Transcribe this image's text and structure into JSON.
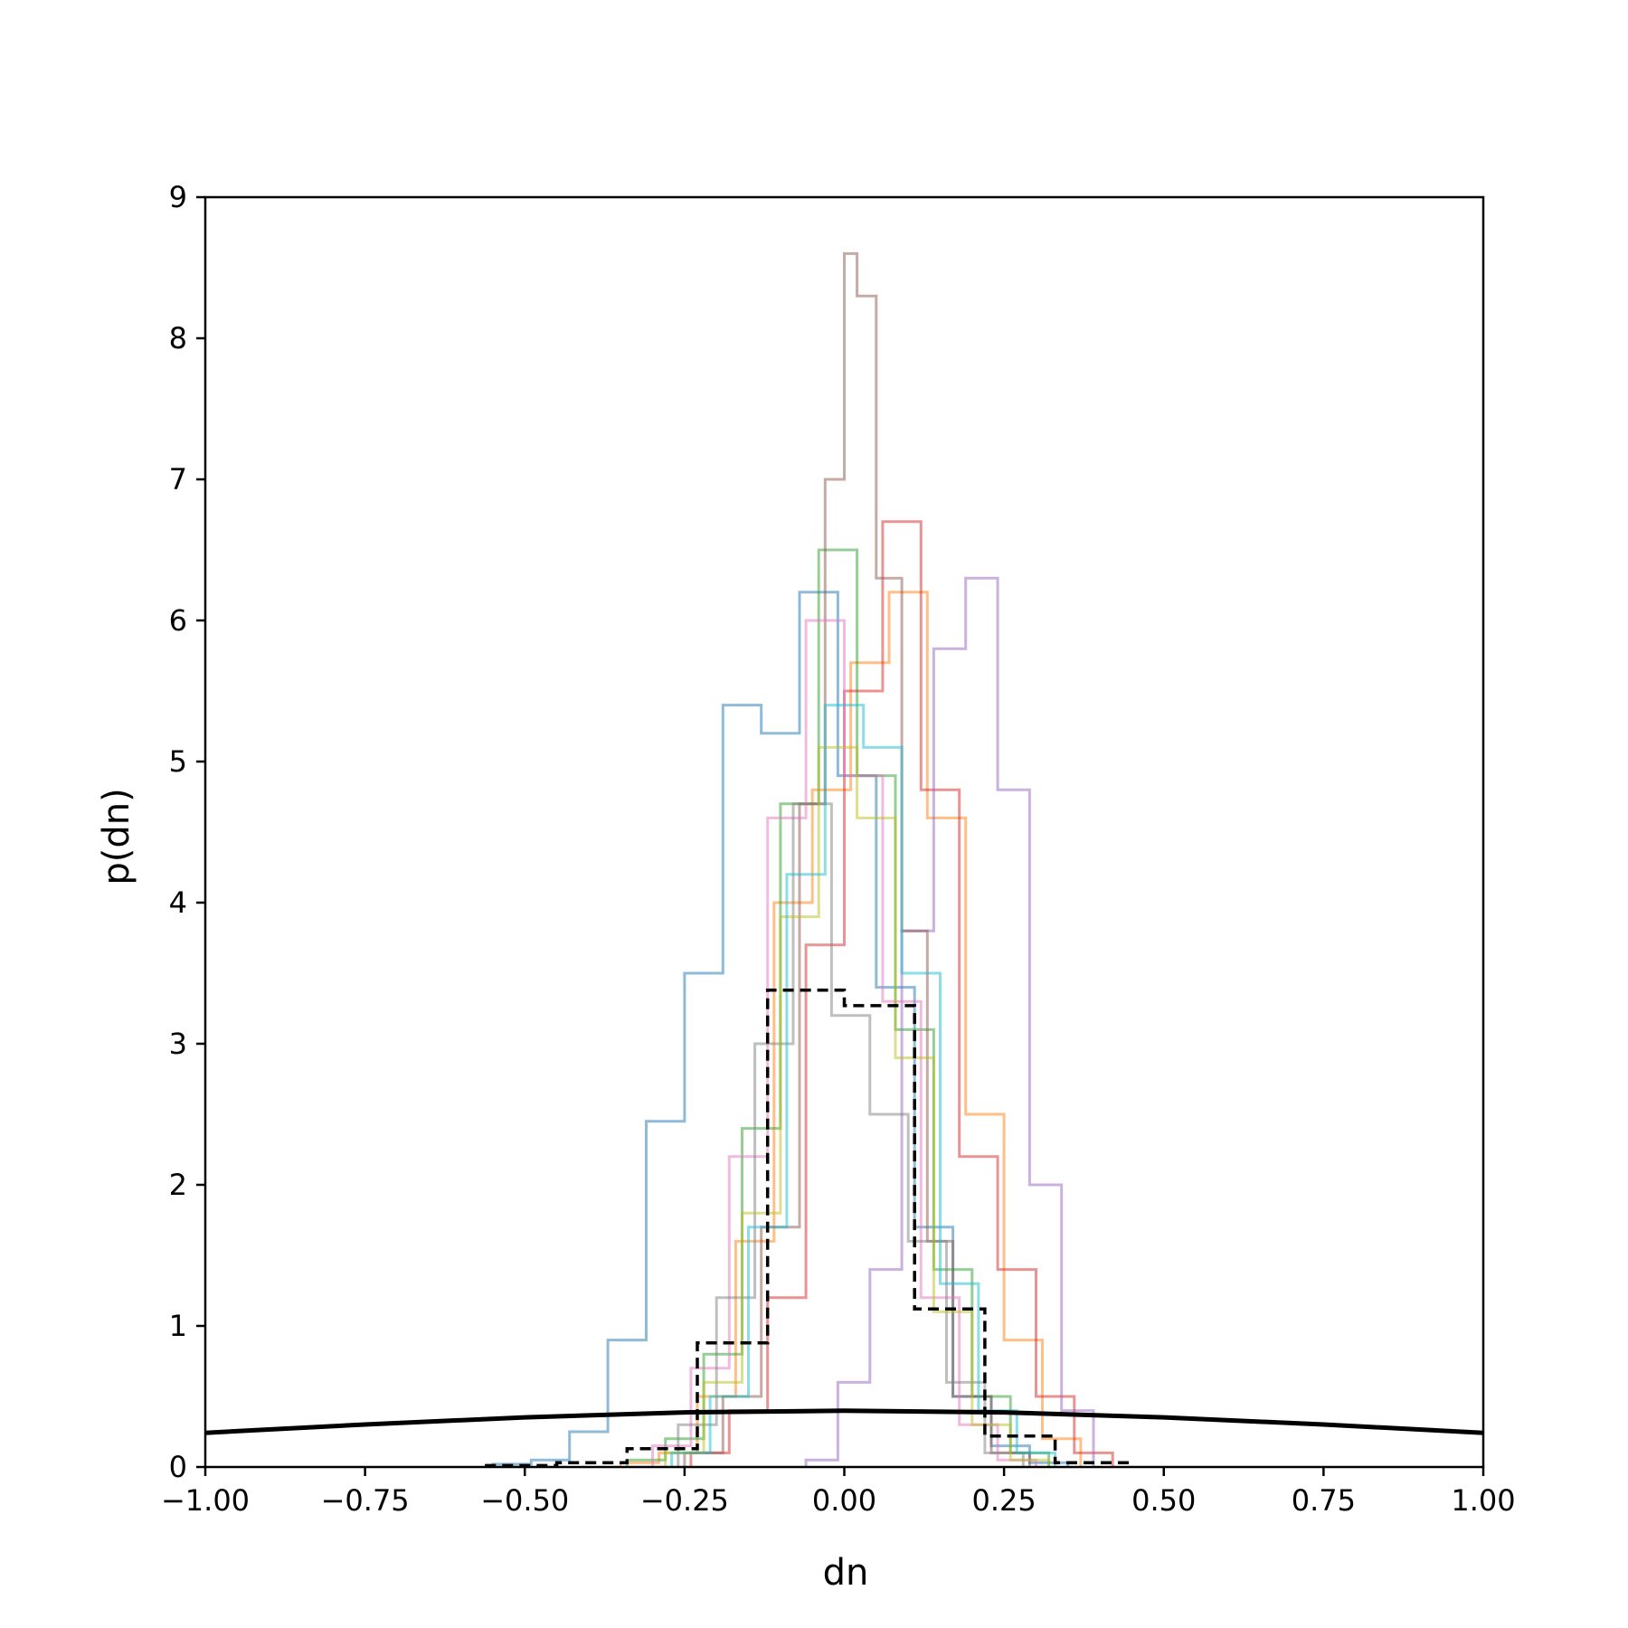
{
  "chart_data": {
    "type": "line",
    "title": "",
    "xlabel": "dn",
    "ylabel": "p(dn)",
    "xlim": [
      -1.0,
      1.0
    ],
    "ylim": [
      0,
      9
    ],
    "grid": false,
    "x_ticks": [
      "−1.00",
      "−0.75",
      "−0.50",
      "−0.25",
      "0.00",
      "0.25",
      "0.50",
      "0.75",
      "1.00"
    ],
    "x_tick_values": [
      -1.0,
      -0.75,
      -0.5,
      -0.25,
      0.0,
      0.25,
      0.5,
      0.75,
      1.0
    ],
    "y_ticks": [
      "0",
      "1",
      "2",
      "3",
      "4",
      "5",
      "6",
      "7",
      "8",
      "9"
    ],
    "y_tick_values": [
      0,
      1,
      2,
      3,
      4,
      5,
      6,
      7,
      8,
      9
    ],
    "series": [
      {
        "color": "#1f77b4",
        "style": "step",
        "x": [
          -0.55,
          -0.49,
          -0.43,
          -0.37,
          -0.31,
          -0.25,
          -0.19,
          -0.13,
          -0.07,
          -0.01,
          0.05,
          0.11,
          0.17,
          0.23,
          0.29,
          0.35
        ],
        "values": [
          0.02,
          0.05,
          0.25,
          0.9,
          2.45,
          3.5,
          5.4,
          5.2,
          6.2,
          4.9,
          3.4,
          1.7,
          0.5,
          0.15,
          0.03,
          0.0
        ]
      },
      {
        "color": "#ff7f0e",
        "style": "step",
        "x": [
          -0.35,
          -0.29,
          -0.23,
          -0.17,
          -0.11,
          -0.05,
          0.01,
          0.07,
          0.13,
          0.19,
          0.25,
          0.31,
          0.37
        ],
        "values": [
          0.03,
          0.1,
          0.5,
          1.6,
          4.0,
          4.8,
          5.7,
          6.2,
          4.6,
          2.5,
          0.9,
          0.2,
          0.0
        ]
      },
      {
        "color": "#2ca02c",
        "style": "step",
        "x": [
          -0.34,
          -0.28,
          -0.22,
          -0.16,
          -0.1,
          -0.04,
          0.02,
          0.08,
          0.14,
          0.2,
          0.26,
          0.32
        ],
        "values": [
          0.05,
          0.2,
          0.8,
          2.4,
          4.7,
          6.5,
          4.9,
          3.1,
          1.4,
          0.5,
          0.1,
          0.0
        ]
      },
      {
        "color": "#d62728",
        "style": "step",
        "x": [
          -0.24,
          -0.18,
          -0.12,
          -0.06,
          0.0,
          0.06,
          0.12,
          0.18,
          0.24,
          0.3,
          0.36,
          0.42
        ],
        "values": [
          0.1,
          0.4,
          1.2,
          3.7,
          5.5,
          6.7,
          4.8,
          2.2,
          1.4,
          0.5,
          0.1,
          0.0
        ]
      },
      {
        "color": "#9467bd",
        "style": "step",
        "x": [
          -0.06,
          -0.01,
          0.04,
          0.09,
          0.14,
          0.19,
          0.24,
          0.29,
          0.34,
          0.39
        ],
        "values": [
          0.05,
          0.6,
          1.4,
          3.8,
          5.8,
          6.3,
          4.8,
          2.0,
          0.4,
          0.0
        ]
      },
      {
        "color": "#8c564b",
        "style": "step",
        "x": [
          -0.25,
          -0.19,
          -0.13,
          -0.07,
          -0.03,
          0.0,
          0.02,
          0.05,
          0.09,
          0.13,
          0.17,
          0.23,
          0.29
        ],
        "values": [
          0.1,
          0.5,
          1.7,
          4.7,
          7.0,
          8.6,
          8.3,
          6.3,
          3.8,
          1.6,
          0.5,
          0.1,
          0.0
        ]
      },
      {
        "color": "#e377c2",
        "style": "step",
        "x": [
          -0.3,
          -0.24,
          -0.18,
          -0.12,
          -0.06,
          0.0,
          0.06,
          0.12,
          0.18,
          0.24,
          0.3
        ],
        "values": [
          0.15,
          0.7,
          2.2,
          4.6,
          6.0,
          4.9,
          3.3,
          1.2,
          0.3,
          0.05,
          0.0
        ]
      },
      {
        "color": "#7f7f7f",
        "style": "step",
        "x": [
          -0.26,
          -0.2,
          -0.14,
          -0.08,
          -0.02,
          0.04,
          0.1,
          0.16,
          0.22,
          0.28
        ],
        "values": [
          0.3,
          1.2,
          3.0,
          4.7,
          3.2,
          2.5,
          1.6,
          0.6,
          0.1,
          0.0
        ]
      },
      {
        "color": "#bcbd22",
        "style": "step",
        "x": [
          -0.28,
          -0.22,
          -0.16,
          -0.1,
          -0.04,
          0.02,
          0.08,
          0.14,
          0.2,
          0.26,
          0.32
        ],
        "values": [
          0.1,
          0.6,
          1.8,
          3.9,
          5.1,
          4.6,
          2.9,
          1.1,
          0.3,
          0.05,
          0.0
        ]
      },
      {
        "color": "#17becf",
        "style": "step",
        "x": [
          -0.27,
          -0.21,
          -0.15,
          -0.09,
          -0.03,
          0.03,
          0.09,
          0.15,
          0.21,
          0.27,
          0.33
        ],
        "values": [
          0.1,
          0.5,
          1.7,
          4.2,
          5.4,
          5.1,
          3.5,
          1.3,
          0.4,
          0.1,
          0.0
        ]
      },
      {
        "name": "",
        "color": "#000000",
        "style": "step-dashed",
        "x": [
          -0.56,
          -0.45,
          -0.34,
          -0.23,
          -0.12,
          0.0,
          0.11,
          0.22,
          0.33,
          0.45
        ],
        "values": [
          0.01,
          0.03,
          0.13,
          0.88,
          3.38,
          3.27,
          1.12,
          0.22,
          0.03,
          0.0
        ]
      },
      {
        "color": "#000000",
        "style": "curve",
        "x": [
          -1.0,
          -0.75,
          -0.5,
          -0.25,
          0.0,
          0.25,
          0.5,
          0.75,
          1.0
        ],
        "values": [
          0.242,
          0.301,
          0.352,
          0.387,
          0.399,
          0.387,
          0.352,
          0.301,
          0.242
        ]
      }
    ]
  }
}
